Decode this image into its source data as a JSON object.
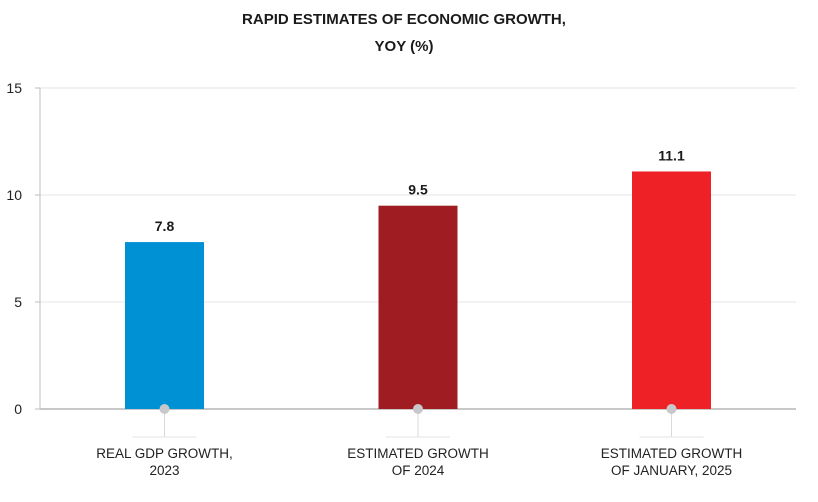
{
  "chart_data": {
    "type": "bar",
    "title_lines": [
      "RAPID ESTIMATES OF ECONOMIC GROWTH,",
      "YOY (%)"
    ],
    "categories": [
      [
        "REAL GDP GROWTH,",
        "2023"
      ],
      [
        "ESTIMATED GROWTH",
        "OF 2024"
      ],
      [
        "ESTIMATED GROWTH",
        "OF JANUARY, 2025"
      ]
    ],
    "values": [
      7.8,
      9.5,
      11.1
    ],
    "value_labels": [
      "7.8",
      "9.5",
      "11.1"
    ],
    "bar_colors": [
      "#0090d4",
      "#9e1c22",
      "#ee2226"
    ],
    "ylim": [
      0,
      15
    ],
    "yticks": [
      0,
      5,
      10,
      15
    ],
    "grid": true,
    "legend": "none"
  }
}
